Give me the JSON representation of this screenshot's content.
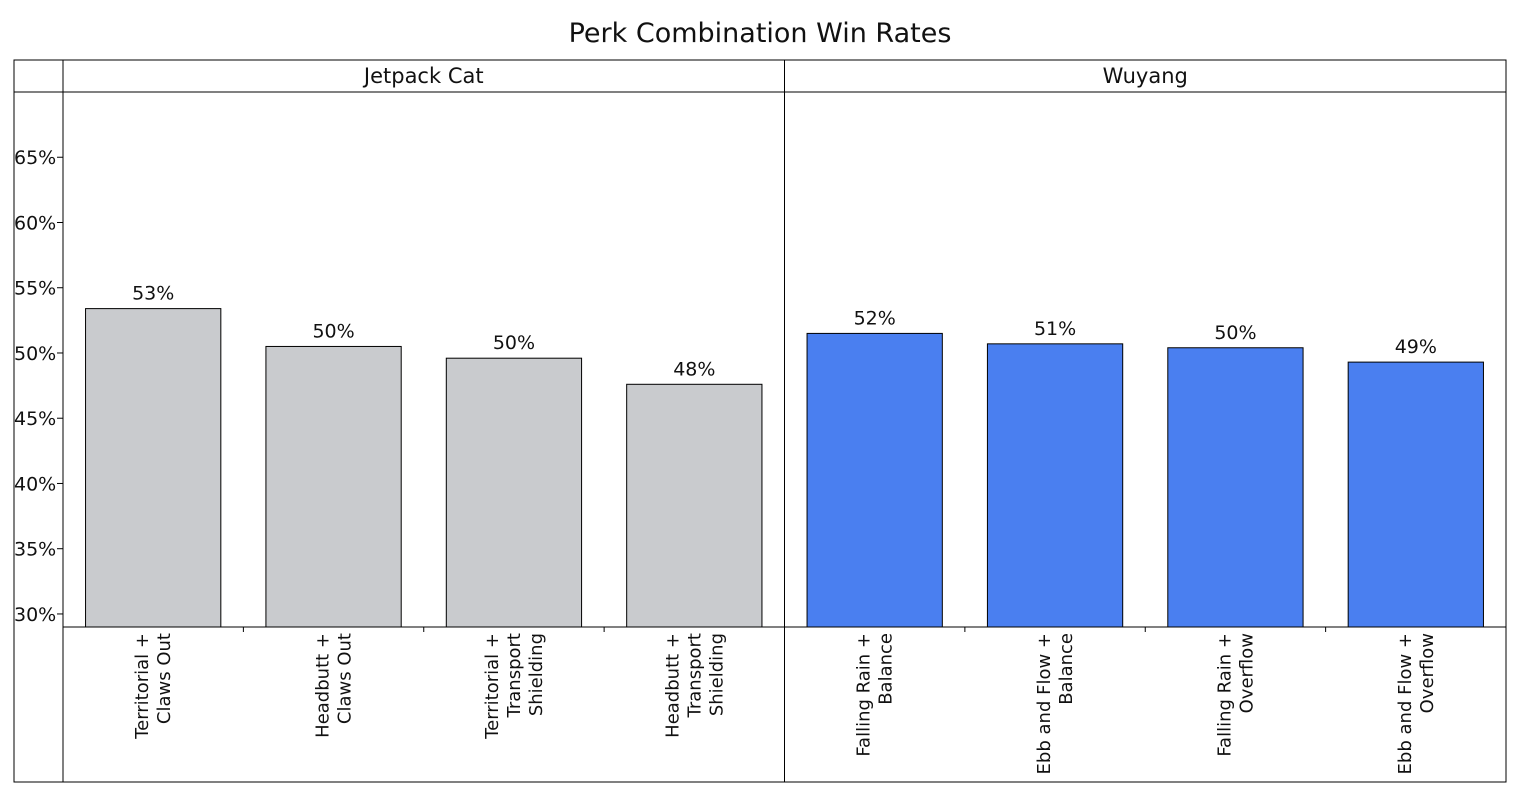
{
  "chart_data": {
    "type": "bar",
    "title": "Perk Combination Win Rates",
    "xlabel": "",
    "ylabel": "",
    "ylim": [
      29,
      70
    ],
    "yticks": [
      "30%",
      "35%",
      "40%",
      "45%",
      "50%",
      "55%",
      "60%",
      "65%"
    ],
    "yticks_values": [
      30,
      35,
      40,
      45,
      50,
      55,
      60,
      65
    ],
    "grid": false,
    "legend": "none",
    "panels": [
      {
        "name": "Jetpack Cat",
        "color": "#c9cbce",
        "bars": [
          {
            "lines": [
              "Territorial +",
              "Claws Out"
            ],
            "value": 53.4,
            "label": "53%"
          },
          {
            "lines": [
              "Headbutt +",
              "Claws Out"
            ],
            "value": 50.5,
            "label": "50%"
          },
          {
            "lines": [
              "Territorial +",
              "Transport",
              "Shielding"
            ],
            "value": 49.6,
            "label": "50%"
          },
          {
            "lines": [
              "Headbutt +",
              "Transport",
              "Shielding"
            ],
            "value": 47.6,
            "label": "48%"
          }
        ]
      },
      {
        "name": "Wuyang",
        "color": "#4a7ff0",
        "bars": [
          {
            "lines": [
              "Falling Rain +",
              "Balance"
            ],
            "value": 51.5,
            "label": "52%"
          },
          {
            "lines": [
              "Ebb and Flow +",
              "Balance"
            ],
            "value": 50.7,
            "label": "51%"
          },
          {
            "lines": [
              "Falling Rain +",
              "Overflow"
            ],
            "value": 50.4,
            "label": "50%"
          },
          {
            "lines": [
              "Ebb and Flow +",
              "Overflow"
            ],
            "value": 49.3,
            "label": "49%"
          }
        ]
      }
    ]
  }
}
